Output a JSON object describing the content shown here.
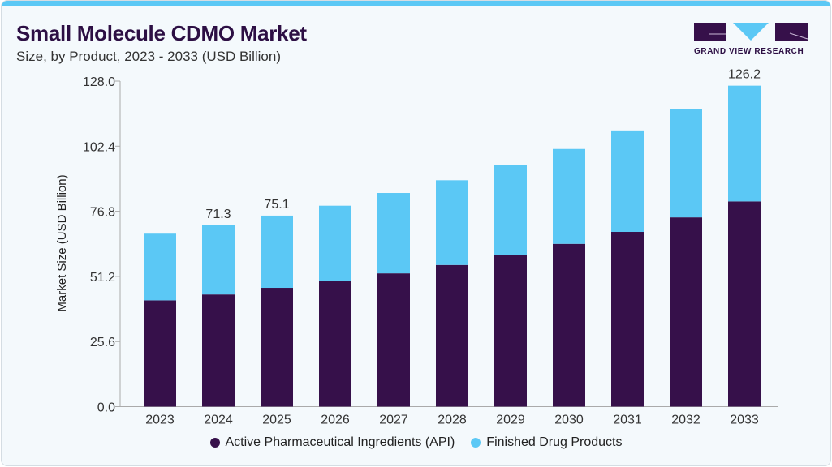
{
  "header": {
    "title": "Small Molecule CDMO Market",
    "subtitle": "Size, by Product, 2023 - 2033 (USD Billion)"
  },
  "logo": {
    "text": "GRAND VIEW RESEARCH"
  },
  "colors": {
    "api": "#36104a",
    "fdp": "#5bc8f5",
    "accent": "#5bc8f5",
    "title": "#2d0f44"
  },
  "chart_data": {
    "type": "bar",
    "stacked": true,
    "title": "Small Molecule CDMO Market",
    "subtitle": "Size, by Product, 2023 - 2033 (USD Billion)",
    "xlabel": "",
    "ylabel": "Market Size (USD Billion)",
    "ylim": [
      0,
      128
    ],
    "yticks": [
      "0.0",
      "25.6",
      "51.2",
      "76.8",
      "102.4",
      "128.0"
    ],
    "categories": [
      "2023",
      "2024",
      "2025",
      "2026",
      "2027",
      "2028",
      "2029",
      "2030",
      "2031",
      "2032",
      "2033"
    ],
    "series": [
      {
        "name": "Active Pharmaceutical Ingredients (API)",
        "color": "#36104a",
        "values": [
          41.8,
          44.1,
          46.7,
          49.4,
          52.4,
          55.7,
          59.7,
          64.0,
          68.7,
          74.4,
          80.7
        ]
      },
      {
        "name": "Finished Drug Products",
        "color": "#5bc8f5",
        "values": [
          26.2,
          27.2,
          28.4,
          29.6,
          31.6,
          33.3,
          35.3,
          37.3,
          39.9,
          42.5,
          45.5
        ]
      }
    ],
    "data_labels": [
      {
        "category": "2024",
        "text": "71.3"
      },
      {
        "category": "2025",
        "text": "75.1"
      },
      {
        "category": "2033",
        "text": "126.2"
      }
    ],
    "grid": false,
    "legend": "bottom"
  }
}
